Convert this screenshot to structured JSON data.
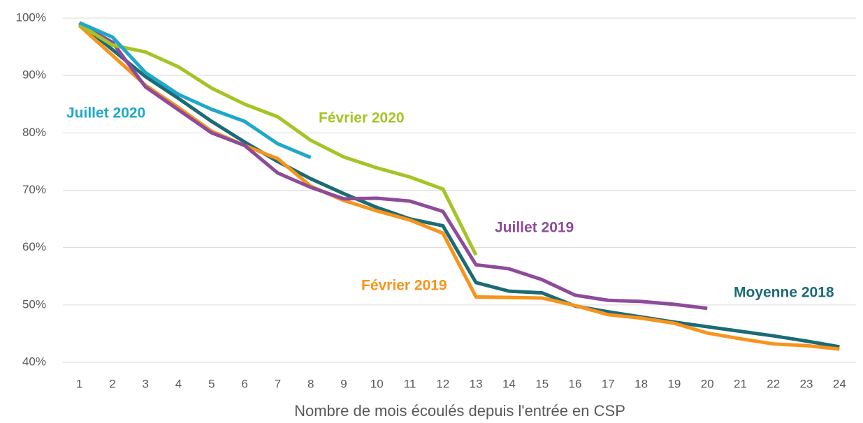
{
  "chart_data": {
    "type": "line",
    "x_label": "Nombre de mois écoulés depuis l'entrée en CSP",
    "categories": [
      "1",
      "2",
      "3",
      "4",
      "5",
      "6",
      "7",
      "8",
      "9",
      "10",
      "11",
      "12",
      "13",
      "14",
      "15",
      "16",
      "17",
      "18",
      "19",
      "20",
      "21",
      "22",
      "23",
      "24"
    ],
    "ylim": [
      40,
      100
    ],
    "yticks": [
      {
        "value": 40,
        "label": "40%"
      },
      {
        "value": 50,
        "label": "50%"
      },
      {
        "value": 60,
        "label": "60%"
      },
      {
        "value": 70,
        "label": "70%"
      },
      {
        "value": 80,
        "label": "80%"
      },
      {
        "value": 90,
        "label": "90%"
      },
      {
        "value": 100,
        "label": "100%"
      }
    ],
    "grid": true,
    "series": [
      {
        "name": "Moyenne 2018",
        "color": "#1b6b74",
        "values": [
          99.2,
          94.5,
          89.8,
          86,
          82,
          78.4,
          75,
          72,
          69.4,
          67,
          65,
          63.8,
          53.9,
          52.4,
          52.1,
          49.8,
          48.8,
          47.9,
          47,
          46.2,
          45.4,
          44.6,
          43.7,
          42.7
        ]
      },
      {
        "name": "Février 2019",
        "color": "#f7941d",
        "values": [
          98.7,
          93.5,
          88.3,
          84.4,
          80.3,
          77.8,
          75.5,
          70.7,
          68.2,
          66.4,
          64.8,
          62.5,
          51.4,
          51.3,
          51.2,
          49.9,
          48.3,
          47.7,
          46.8,
          45.1,
          44.1,
          43.2,
          42.9,
          42.3
        ]
      },
      {
        "name": "Juillet 2019",
        "color": "#8e4b9a",
        "values": [
          99,
          95.8,
          88,
          84,
          80,
          77.8,
          73,
          70.5,
          68.5,
          68.6,
          68.1,
          66.3,
          57,
          56.3,
          54.4,
          51.7,
          50.8,
          50.6,
          50.1,
          49.4,
          null,
          null,
          null,
          null
        ]
      },
      {
        "name": "Février 2020",
        "color": "#a5c426",
        "values": [
          98.9,
          95.3,
          94.1,
          91.5,
          87.8,
          85,
          82.8,
          78.7,
          75.8,
          73.9,
          72.3,
          70.2,
          58.7,
          null,
          null,
          null,
          null,
          null,
          null,
          null,
          null,
          null,
          null,
          null
        ]
      },
      {
        "name": "Juillet 2020",
        "color": "#1fa8c9",
        "values": [
          99.2,
          96.7,
          90.5,
          86.7,
          84.1,
          82,
          78.1,
          75.7,
          null,
          null,
          null,
          null,
          null,
          null,
          null,
          null,
          null,
          null,
          null,
          null,
          null,
          null,
          null,
          null
        ]
      }
    ]
  }
}
